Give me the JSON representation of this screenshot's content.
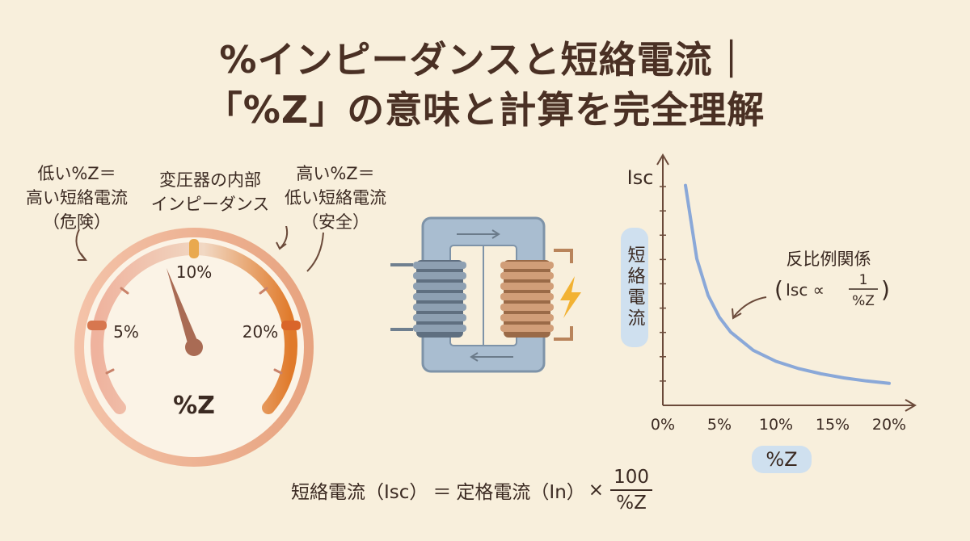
{
  "title": {
    "line1": "%インピーダンスと短絡電流｜",
    "line2": "「%Z」の意味と計算を完全理解"
  },
  "gauge": {
    "low_note": [
      "低い%Z＝",
      "高い短絡電流",
      "（危険）"
    ],
    "center_note": [
      "変圧器の内部",
      "インピーダンス"
    ],
    "high_note": [
      "高い%Z＝",
      "低い短絡電流",
      "（安全）"
    ],
    "ticks": [
      "5%",
      "10%",
      "20%"
    ],
    "label": "%Z",
    "colors": {
      "low": "#e99a82",
      "high": "#e07a2a",
      "rim": "#e9b08f"
    }
  },
  "transformer": {
    "icon": "transformer-icon",
    "bolt_icon": "lightning-bolt-icon",
    "colors": {
      "core": "#a9bdd0",
      "primary_coil": "#6f7f8f",
      "secondary_coil": "#b9845b",
      "bolt": "#f2b233"
    }
  },
  "chart_data": {
    "type": "line",
    "y_axis_label": "Isc",
    "y_category_label": "短絡電流",
    "x_axis_label": "%Z",
    "x_ticks": [
      "0%",
      "5%",
      "10%",
      "15%",
      "20%"
    ],
    "xlim": [
      0,
      20
    ],
    "series": [
      {
        "x": [
          2,
          3,
          4,
          5,
          6,
          8,
          10,
          12,
          14,
          16,
          18,
          20
        ],
        "y": [
          10.0,
          6.67,
          5.0,
          4.0,
          3.33,
          2.5,
          2.0,
          1.67,
          1.43,
          1.25,
          1.11,
          1.0
        ],
        "color": "#8aa8d8"
      }
    ],
    "annotation": {
      "heading": "反比例関係",
      "lhs": "Isc ∝",
      "numerator": "1",
      "denominator": "%Z"
    }
  },
  "formula": {
    "lhs": "短絡電流（Isc）",
    "equals": "＝",
    "rated": "定格電流（In）",
    "times": "×",
    "numerator": "100",
    "denominator": "%Z"
  }
}
